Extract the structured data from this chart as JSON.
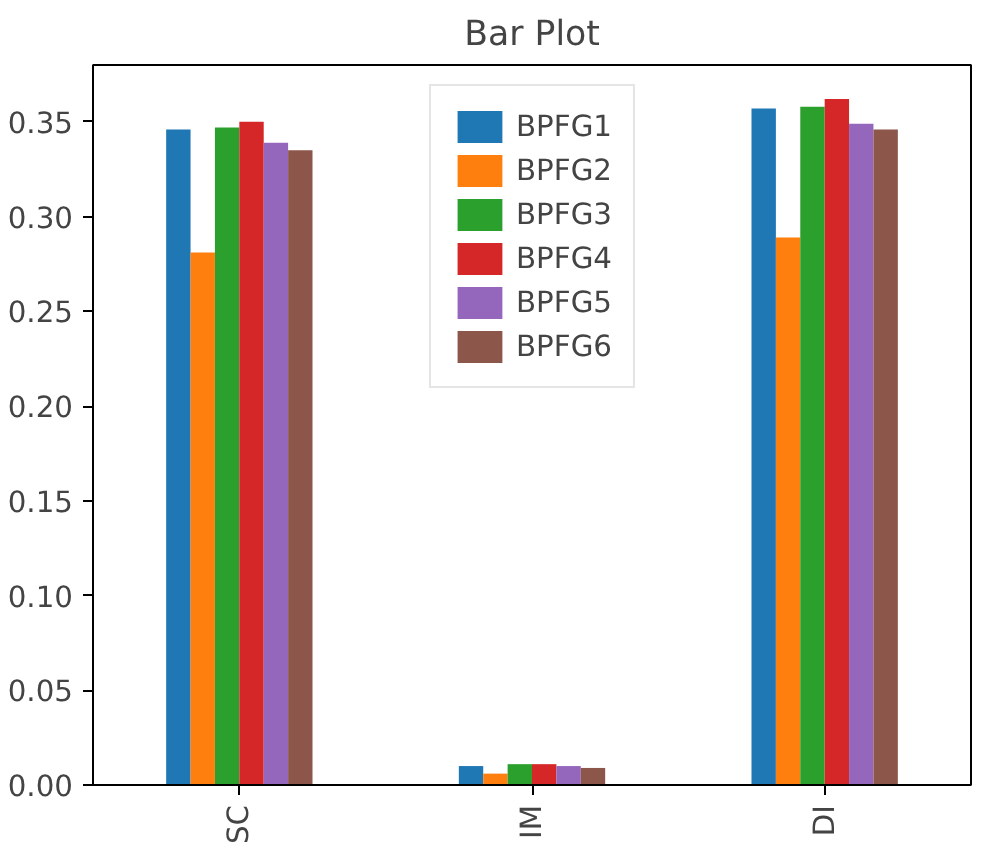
{
  "chart_data": {
    "type": "bar",
    "title": "Bar Plot",
    "categories": [
      "SC",
      "IM",
      "DI"
    ],
    "series": [
      {
        "name": "BPFG1",
        "color": "#1f77b4",
        "values": [
          0.346,
          0.01,
          0.357
        ]
      },
      {
        "name": "BPFG2",
        "color": "#ff7f0e",
        "values": [
          0.281,
          0.006,
          0.289
        ]
      },
      {
        "name": "BPFG3",
        "color": "#2ca02c",
        "values": [
          0.347,
          0.011,
          0.358
        ]
      },
      {
        "name": "BPFG4",
        "color": "#d62728",
        "values": [
          0.35,
          0.011,
          0.362
        ]
      },
      {
        "name": "BPFG5",
        "color": "#9467bd",
        "values": [
          0.339,
          0.01,
          0.349
        ]
      },
      {
        "name": "BPFG6",
        "color": "#8c564b",
        "values": [
          0.335,
          0.009,
          0.346
        ]
      }
    ],
    "ylim": [
      0,
      0.38
    ],
    "yticks": [
      {
        "value": 0,
        "label": "0.00"
      },
      {
        "value": 0.05,
        "label": "0.05"
      },
      {
        "value": 0.1,
        "label": "0.10"
      },
      {
        "value": 0.15,
        "label": "0.15"
      },
      {
        "value": 0.2,
        "label": "0.20"
      },
      {
        "value": 0.25,
        "label": "0.25"
      },
      {
        "value": 0.3,
        "label": "0.30"
      },
      {
        "value": 0.35,
        "label": "0.35"
      }
    ],
    "grid": false,
    "legend": "top"
  }
}
